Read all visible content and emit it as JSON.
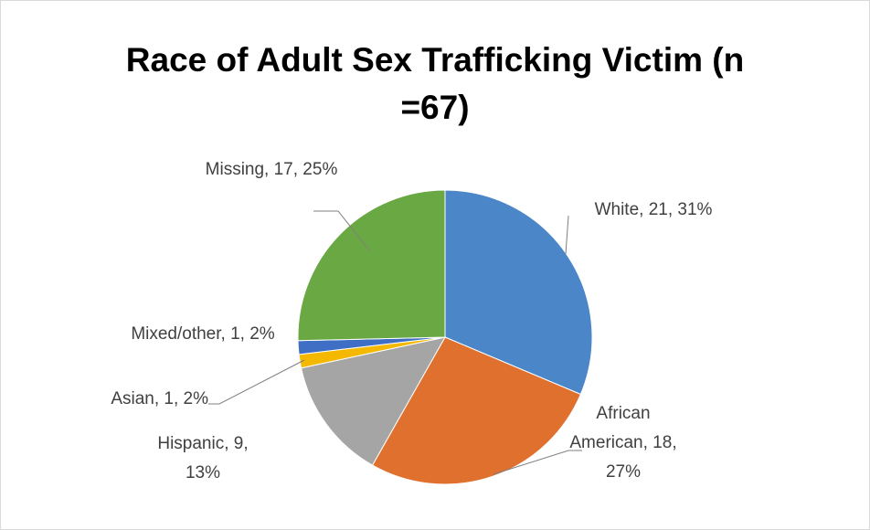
{
  "chart_data": {
    "type": "pie",
    "title": "Race of Adult Sex Trafficking Victim (n =67)",
    "categories": [
      "White",
      "African American",
      "Hispanic",
      "Asian",
      "Mixed/other",
      "Missing"
    ],
    "values": [
      21,
      18,
      9,
      1,
      1,
      17
    ],
    "value_labels": [
      "White, 21, 31%",
      "African American, 18, 27%",
      "Hispanic, 9, 13%",
      "Asian, 1, 2%",
      "Mixed/other, 1, 2%",
      "Missing, 17, 25%"
    ],
    "colors": [
      "#4a86c8",
      "#e0702e",
      "#a5a5a5",
      "#f5b800",
      "#3f6fc4",
      "#6aa844"
    ]
  }
}
